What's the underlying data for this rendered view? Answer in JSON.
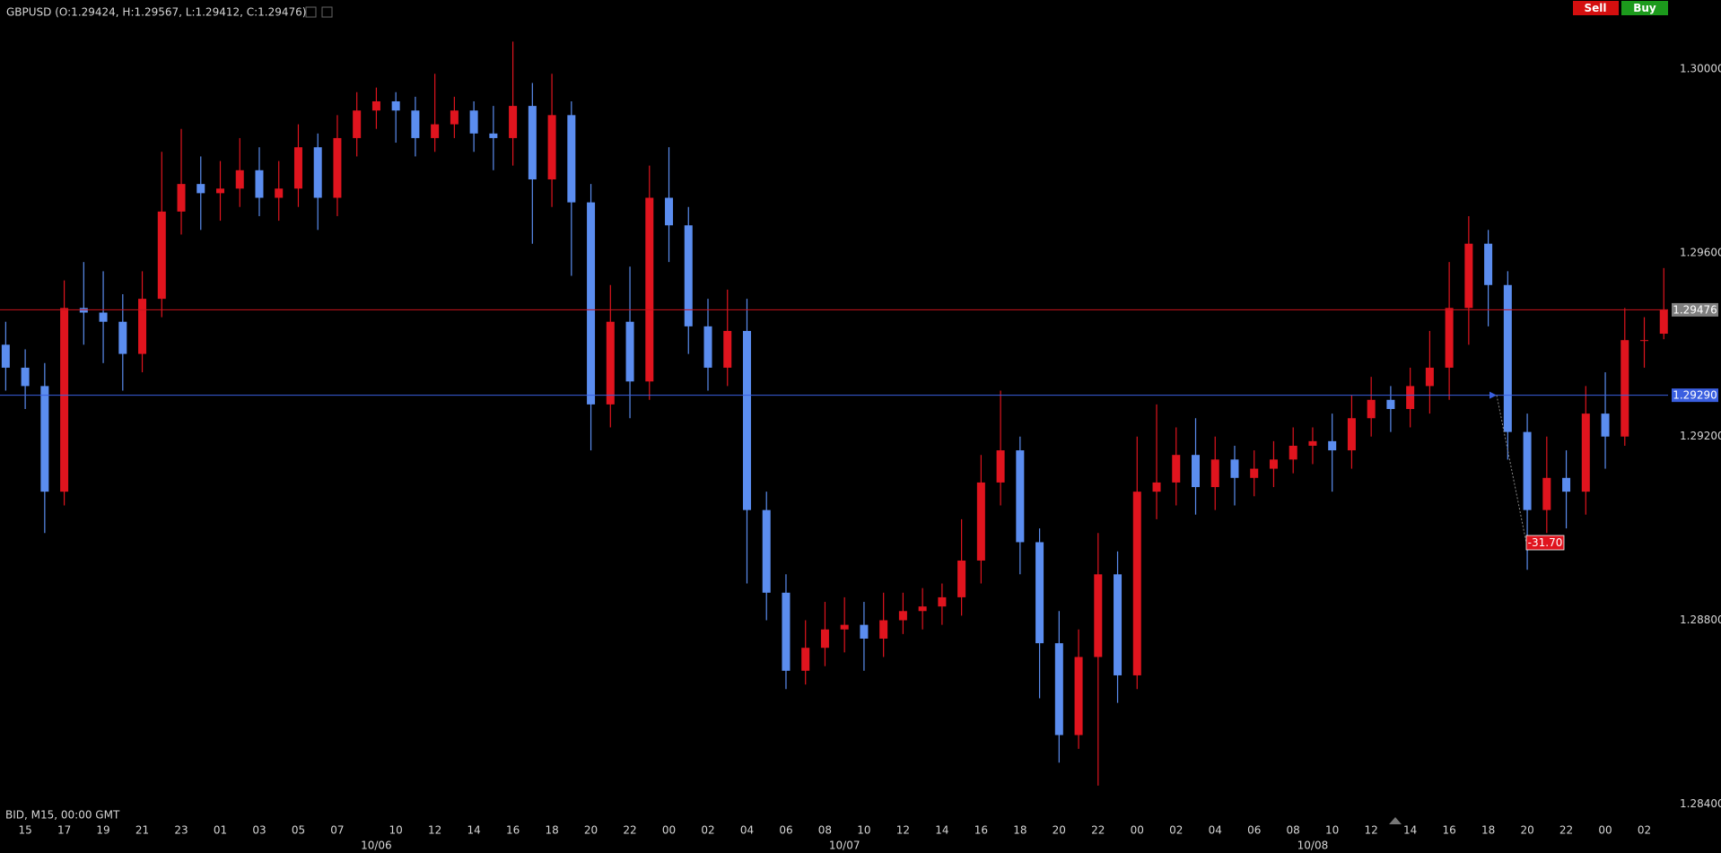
{
  "toolbar": {
    "sell": "Sell",
    "buy": "Buy"
  },
  "chart_data": {
    "type": "candlestick",
    "title": "GBPUSD (O:1.29424, H:1.29567, L:1.29412, C:1.29476)",
    "info_label": "BID, M15, 00:00 GMT",
    "up_color": "#e0141e",
    "down_color": "#5b8def",
    "grid": false,
    "categories": [
      null,
      "15",
      null,
      "17",
      null,
      "19",
      null,
      "21",
      null,
      "23",
      null,
      "01",
      null,
      "03",
      null,
      "05",
      null,
      "07",
      null,
      null,
      "10",
      null,
      "12",
      null,
      "14",
      null,
      "16",
      null,
      "18",
      null,
      "20",
      null,
      "22",
      null,
      "00",
      null,
      "02",
      null,
      "04",
      null,
      "06",
      null,
      "08",
      null,
      "10",
      null,
      "12",
      null,
      "14",
      null,
      "16",
      null,
      "18",
      null,
      "20",
      null,
      "22",
      null,
      "00",
      null,
      "02",
      null,
      "04",
      null,
      "06",
      null,
      "08",
      null,
      "10",
      null,
      "12",
      null,
      "14",
      null,
      "16",
      null,
      "18",
      null,
      "20",
      null,
      "22",
      null,
      "00",
      null,
      "02",
      null
    ],
    "date_labels": [
      null,
      null,
      null,
      null,
      null,
      null,
      null,
      null,
      null,
      null,
      null,
      null,
      null,
      null,
      null,
      null,
      null,
      null,
      null,
      "10/06",
      null,
      null,
      null,
      null,
      null,
      null,
      null,
      null,
      null,
      null,
      null,
      null,
      null,
      null,
      null,
      null,
      null,
      null,
      null,
      null,
      null,
      null,
      null,
      "10/07",
      null,
      null,
      null,
      null,
      null,
      null,
      null,
      null,
      null,
      null,
      null,
      null,
      null,
      null,
      null,
      null,
      null,
      null,
      null,
      null,
      null,
      null,
      null,
      "10/08",
      null,
      null,
      null,
      null,
      null,
      null,
      null,
      null,
      null,
      null,
      null,
      null,
      null,
      null,
      null,
      null,
      null,
      null
    ],
    "open": [
      1.294,
      1.2935,
      1.2931,
      1.2908,
      1.2948,
      1.2947,
      1.2945,
      1.2938,
      1.295,
      1.2969,
      1.2975,
      1.2973,
      1.2974,
      1.2978,
      1.2972,
      1.2974,
      1.2983,
      1.2972,
      1.2985,
      1.2991,
      1.2993,
      1.2991,
      1.2985,
      1.2988,
      1.2991,
      1.2986,
      1.2985,
      1.2992,
      1.2976,
      1.299,
      1.2971,
      1.2927,
      1.2945,
      1.2932,
      1.2972,
      1.2966,
      1.2944,
      1.2935,
      1.2943,
      1.2904,
      1.2886,
      1.2869,
      1.2874,
      1.2878,
      1.2879,
      1.2876,
      1.288,
      1.2882,
      1.2883,
      1.2885,
      1.2893,
      1.291,
      1.2917,
      1.2897,
      1.2875,
      1.2855,
      1.2872,
      1.289,
      1.2868,
      1.2908,
      1.291,
      1.2916,
      1.2909,
      1.2915,
      1.2911,
      1.2913,
      1.2915,
      1.2918,
      1.2919,
      1.2917,
      1.2924,
      1.2928,
      1.2926,
      1.2931,
      1.2935,
      1.2948,
      1.2962,
      1.2953,
      1.2921,
      1.2904,
      1.2911,
      1.2908,
      1.2925,
      1.292,
      1.2941,
      1.29424
    ],
    "high": [
      1.2945,
      1.2939,
      1.2936,
      1.2954,
      1.2958,
      1.2956,
      1.2951,
      1.2956,
      1.2982,
      1.2987,
      1.2981,
      1.298,
      1.2985,
      1.2983,
      1.298,
      1.2988,
      1.2986,
      1.299,
      1.2995,
      1.2996,
      1.2995,
      1.2994,
      1.2999,
      1.2994,
      1.2993,
      1.2992,
      1.3006,
      1.2997,
      1.2999,
      1.2993,
      1.2975,
      1.2953,
      1.2957,
      1.2979,
      1.2983,
      1.297,
      1.295,
      1.2952,
      1.295,
      1.2908,
      1.289,
      1.288,
      1.2884,
      1.2885,
      1.2884,
      1.2886,
      1.2886,
      1.2887,
      1.2888,
      1.2902,
      1.2916,
      1.293,
      1.292,
      1.29,
      1.2882,
      1.2878,
      1.2899,
      1.2895,
      1.292,
      1.2927,
      1.2922,
      1.2924,
      1.292,
      1.2918,
      1.2917,
      1.2919,
      1.2922,
      1.2922,
      1.2925,
      1.2929,
      1.2933,
      1.2931,
      1.2935,
      1.2943,
      1.2958,
      1.2968,
      1.2965,
      1.2956,
      1.2925,
      1.292,
      1.2917,
      1.2931,
      1.2934,
      1.2948,
      1.2946,
      1.29567
    ],
    "low": [
      1.293,
      1.2926,
      1.2899,
      1.2905,
      1.294,
      1.2936,
      1.293,
      1.2934,
      1.2946,
      1.2964,
      1.2965,
      1.2967,
      1.297,
      1.2968,
      1.2967,
      1.297,
      1.2965,
      1.2968,
      1.2981,
      1.2987,
      1.2984,
      1.2981,
      1.2982,
      1.2985,
      1.2982,
      1.2978,
      1.2979,
      1.2962,
      1.297,
      1.2955,
      1.2917,
      1.2922,
      1.2924,
      1.2928,
      1.2958,
      1.2938,
      1.293,
      1.2931,
      1.2888,
      1.288,
      1.2865,
      1.2866,
      1.287,
      1.2873,
      1.2869,
      1.2872,
      1.2877,
      1.2878,
      1.2879,
      1.2881,
      1.2888,
      1.2905,
      1.289,
      1.2863,
      1.2849,
      1.2852,
      1.2844,
      1.2862,
      1.2865,
      1.2902,
      1.2905,
      1.2903,
      1.2904,
      1.2905,
      1.2907,
      1.2909,
      1.2912,
      1.2914,
      1.2908,
      1.2913,
      1.292,
      1.2921,
      1.2922,
      1.2925,
      1.2928,
      1.294,
      1.2944,
      1.2915,
      1.2891,
      1.2899,
      1.29,
      1.2903,
      1.2913,
      1.2918,
      1.2935,
      1.29412
    ],
    "close": [
      1.2935,
      1.2931,
      1.2908,
      1.2948,
      1.2947,
      1.2945,
      1.2938,
      1.295,
      1.2969,
      1.2975,
      1.2973,
      1.2974,
      1.2978,
      1.2972,
      1.2974,
      1.2983,
      1.2972,
      1.2985,
      1.2991,
      1.2993,
      1.2991,
      1.2985,
      1.2988,
      1.2991,
      1.2986,
      1.2985,
      1.2992,
      1.2976,
      1.299,
      1.2971,
      1.2927,
      1.2945,
      1.2932,
      1.2972,
      1.2966,
      1.2944,
      1.2935,
      1.2943,
      1.2904,
      1.2886,
      1.2869,
      1.2874,
      1.2878,
      1.2879,
      1.2876,
      1.288,
      1.2882,
      1.2883,
      1.2885,
      1.2893,
      1.291,
      1.2917,
      1.2897,
      1.2875,
      1.2855,
      1.2872,
      1.289,
      1.2868,
      1.2908,
      1.291,
      1.2916,
      1.2909,
      1.2915,
      1.2911,
      1.2913,
      1.2915,
      1.2918,
      1.2919,
      1.2917,
      1.2924,
      1.2928,
      1.2926,
      1.2931,
      1.2935,
      1.2948,
      1.2962,
      1.2953,
      1.2921,
      1.2904,
      1.2911,
      1.2908,
      1.2925,
      1.292,
      1.2941,
      1.2941,
      1.29476
    ],
    "ylim": [
      1.28383,
      1.30079
    ],
    "yticks": [
      {
        "value": 1.284,
        "label": "1.28400"
      },
      {
        "value": 1.288,
        "label": "1.28800"
      },
      {
        "value": 1.292,
        "label": "1.29200"
      },
      {
        "value": 1.296,
        "label": "1.29600"
      },
      {
        "value": 1.3,
        "label": "1.30000"
      }
    ],
    "price_lines": [
      {
        "value": 1.29476,
        "label": "1.29476",
        "color": "#c8141c",
        "label_color": "#7f7f7f"
      },
      {
        "value": 1.2929,
        "label": "1.29290",
        "color": "#3a5fe0",
        "label_color": "#3a5fe0"
      }
    ],
    "annotations": [
      {
        "text": "-31.70",
        "color": "#e0141e"
      }
    ]
  }
}
